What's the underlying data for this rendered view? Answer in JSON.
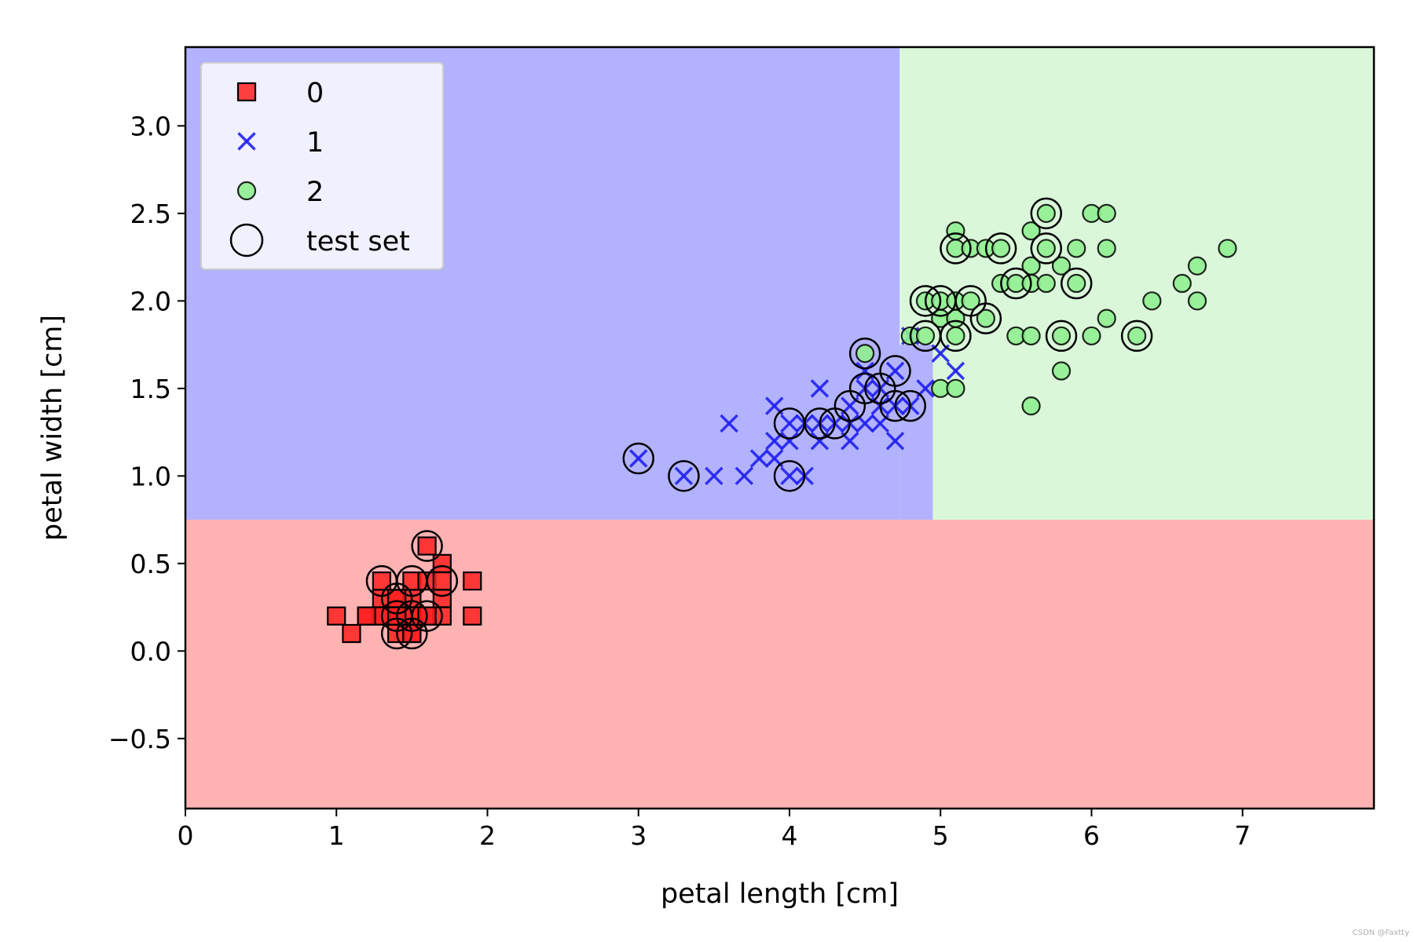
{
  "chart_data": {
    "type": "scatter",
    "title": "",
    "xlabel": "petal length [cm]",
    "ylabel": "petal width [cm]",
    "xlim": [
      0,
      7.87
    ],
    "ylim": [
      -0.9,
      3.45
    ],
    "xticks": [
      0,
      1,
      2,
      3,
      4,
      5,
      6,
      7
    ],
    "xtick_labels": [
      "0",
      "1",
      "2",
      "3",
      "4",
      "5",
      "6",
      "7"
    ],
    "yticks": [
      -0.5,
      0.0,
      0.5,
      1.0,
      1.5,
      2.0,
      2.5,
      3.0
    ],
    "ytick_labels": [
      "−0.5",
      "0.0",
      "0.5",
      "1.0",
      "1.5",
      "2.0",
      "2.5",
      "3.0"
    ],
    "grid": false,
    "legend_position": "top-left",
    "decision_regions": [
      {
        "class": "0",
        "color": "#ffb2b2",
        "x_range": [
          0,
          7.87
        ],
        "y_range": [
          -0.9,
          0.75
        ]
      },
      {
        "class": "1",
        "color": "#b2b2ff",
        "x_range": [
          0,
          4.73
        ],
        "y_range": [
          0.75,
          3.45
        ]
      },
      {
        "class": "1",
        "color": "#b2b2ff",
        "x_range": [
          4.73,
          4.95
        ],
        "y_range": [
          0.75,
          3.45
        ]
      },
      {
        "class": "2",
        "color": "#daf7da",
        "x_range": [
          4.73,
          7.87
        ],
        "y_range": [
          1.75,
          3.45
        ]
      },
      {
        "class": "2",
        "color": "#daf7da",
        "x_range": [
          4.95,
          7.87
        ],
        "y_range": [
          0.75,
          1.75
        ]
      }
    ],
    "series": [
      {
        "name": "0",
        "marker": "square",
        "color": "#ff2020",
        "points": [
          [
            1.0,
            0.2
          ],
          [
            1.1,
            0.1
          ],
          [
            1.2,
            0.2
          ],
          [
            1.3,
            0.2
          ],
          [
            1.3,
            0.3
          ],
          [
            1.3,
            0.4
          ],
          [
            1.4,
            0.2
          ],
          [
            1.4,
            0.3
          ],
          [
            1.4,
            0.1
          ],
          [
            1.5,
            0.2
          ],
          [
            1.5,
            0.4
          ],
          [
            1.5,
            0.3
          ],
          [
            1.5,
            0.1
          ],
          [
            1.6,
            0.2
          ],
          [
            1.6,
            0.6
          ],
          [
            1.6,
            0.4
          ],
          [
            1.7,
            0.2
          ],
          [
            1.7,
            0.3
          ],
          [
            1.7,
            0.5
          ],
          [
            1.7,
            0.4
          ],
          [
            1.9,
            0.2
          ],
          [
            1.9,
            0.4
          ],
          [
            1.4,
            0.2
          ],
          [
            1.5,
            0.2
          ],
          [
            1.3,
            0.2
          ],
          [
            1.4,
            0.3
          ],
          [
            1.5,
            0.1
          ],
          [
            1.6,
            0.2
          ],
          [
            1.4,
            0.2
          ],
          [
            1.2,
            0.2
          ]
        ]
      },
      {
        "name": "1",
        "marker": "x",
        "color": "#2020ee",
        "points": [
          [
            3.0,
            1.1
          ],
          [
            3.3,
            1.0
          ],
          [
            3.5,
            1.0
          ],
          [
            3.6,
            1.3
          ],
          [
            3.7,
            1.0
          ],
          [
            3.8,
            1.1
          ],
          [
            3.9,
            1.1
          ],
          [
            3.9,
            1.2
          ],
          [
            3.9,
            1.4
          ],
          [
            4.0,
            1.0
          ],
          [
            4.0,
            1.2
          ],
          [
            4.0,
            1.3
          ],
          [
            4.1,
            1.0
          ],
          [
            4.1,
            1.3
          ],
          [
            4.2,
            1.2
          ],
          [
            4.2,
            1.3
          ],
          [
            4.2,
            1.5
          ],
          [
            4.3,
            1.3
          ],
          [
            4.4,
            1.2
          ],
          [
            4.4,
            1.3
          ],
          [
            4.4,
            1.4
          ],
          [
            4.5,
            1.3
          ],
          [
            4.5,
            1.5
          ],
          [
            4.5,
            1.6
          ],
          [
            4.6,
            1.3
          ],
          [
            4.6,
            1.4
          ],
          [
            4.6,
            1.5
          ],
          [
            4.7,
            1.2
          ],
          [
            4.7,
            1.4
          ],
          [
            4.7,
            1.6
          ],
          [
            4.8,
            1.4
          ],
          [
            4.8,
            1.8
          ],
          [
            4.9,
            1.5
          ],
          [
            5.0,
            1.7
          ],
          [
            5.1,
            1.6
          ]
        ]
      },
      {
        "name": "2",
        "marker": "circle",
        "color": "#90ee90",
        "points": [
          [
            4.5,
            1.7
          ],
          [
            4.8,
            1.8
          ],
          [
            4.9,
            1.8
          ],
          [
            4.9,
            2.0
          ],
          [
            5.0,
            1.5
          ],
          [
            5.0,
            1.9
          ],
          [
            5.0,
            2.0
          ],
          [
            5.1,
            1.5
          ],
          [
            5.1,
            1.8
          ],
          [
            5.1,
            1.9
          ],
          [
            5.1,
            2.0
          ],
          [
            5.1,
            2.3
          ],
          [
            5.1,
            2.4
          ],
          [
            5.2,
            2.0
          ],
          [
            5.2,
            2.3
          ],
          [
            5.3,
            1.9
          ],
          [
            5.3,
            2.3
          ],
          [
            5.4,
            2.1
          ],
          [
            5.4,
            2.3
          ],
          [
            5.5,
            1.8
          ],
          [
            5.5,
            2.1
          ],
          [
            5.6,
            1.4
          ],
          [
            5.6,
            1.8
          ],
          [
            5.6,
            2.1
          ],
          [
            5.6,
            2.2
          ],
          [
            5.6,
            2.4
          ],
          [
            5.7,
            2.1
          ],
          [
            5.7,
            2.3
          ],
          [
            5.7,
            2.5
          ],
          [
            5.8,
            1.6
          ],
          [
            5.8,
            1.8
          ],
          [
            5.8,
            2.2
          ],
          [
            5.9,
            2.1
          ],
          [
            5.9,
            2.3
          ],
          [
            6.0,
            1.8
          ],
          [
            6.0,
            2.5
          ],
          [
            6.1,
            1.9
          ],
          [
            6.1,
            2.3
          ],
          [
            6.1,
            2.5
          ],
          [
            6.3,
            1.8
          ],
          [
            6.4,
            2.0
          ],
          [
            6.6,
            2.1
          ],
          [
            6.7,
            2.0
          ],
          [
            6.7,
            2.2
          ],
          [
            6.9,
            2.3
          ]
        ]
      }
    ],
    "test_set": {
      "name": "test set",
      "marker": "open-circle",
      "color": "#000000",
      "points": [
        [
          1.3,
          0.4
        ],
        [
          1.4,
          0.2
        ],
        [
          1.4,
          0.3
        ],
        [
          1.4,
          0.1
        ],
        [
          1.5,
          0.4
        ],
        [
          1.5,
          0.2
        ],
        [
          1.5,
          0.1
        ],
        [
          1.6,
          0.6
        ],
        [
          1.6,
          0.2
        ],
        [
          1.7,
          0.4
        ],
        [
          3.0,
          1.1
        ],
        [
          3.3,
          1.0
        ],
        [
          4.0,
          1.3
        ],
        [
          4.0,
          1.0
        ],
        [
          4.2,
          1.3
        ],
        [
          4.3,
          1.3
        ],
        [
          4.4,
          1.4
        ],
        [
          4.5,
          1.5
        ],
        [
          4.5,
          1.7
        ],
        [
          4.6,
          1.5
        ],
        [
          4.7,
          1.4
        ],
        [
          4.7,
          1.6
        ],
        [
          4.8,
          1.4
        ],
        [
          4.9,
          1.8
        ],
        [
          4.9,
          2.0
        ],
        [
          5.0,
          2.0
        ],
        [
          5.1,
          1.8
        ],
        [
          5.1,
          2.3
        ],
        [
          5.2,
          2.0
        ],
        [
          5.3,
          1.9
        ],
        [
          5.4,
          2.3
        ],
        [
          5.5,
          2.1
        ],
        [
          5.7,
          2.3
        ],
        [
          5.7,
          2.5
        ],
        [
          5.8,
          1.8
        ],
        [
          5.9,
          2.1
        ],
        [
          6.3,
          1.8
        ]
      ]
    },
    "legend": [
      {
        "label": "0",
        "marker": "square"
      },
      {
        "label": "1",
        "marker": "x"
      },
      {
        "label": "2",
        "marker": "circle"
      },
      {
        "label": "test set",
        "marker": "open-circle"
      }
    ]
  },
  "watermark": "CSDN @Faxtty"
}
